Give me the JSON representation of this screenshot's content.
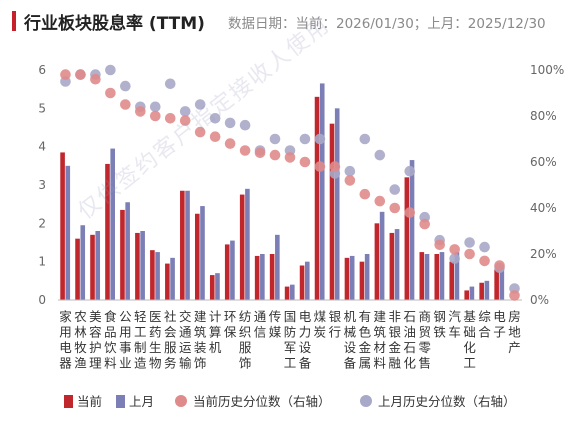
{
  "header": {
    "title": "行业板块股息率 (TTM)",
    "dates": "数据日期：当前：2026/01/30；上月：2025/12/30"
  },
  "watermark": "仅供签约客户指定接收人使用",
  "chart_data": {
    "type": "bar",
    "categories": [
      "家用电器",
      "农林牧渔",
      "美容护理",
      "食品饮料",
      "公用事业",
      "轻工制造",
      "医药生物",
      "社会服务",
      "交通运输",
      "建筑装饰",
      "计算机",
      "环保",
      "纺织服饰",
      "通信",
      "传媒",
      "国防军工",
      "电力设备",
      "煤炭",
      "银行",
      "机械设备",
      "有色金属",
      "建筑材料",
      "非银金融",
      "石油石化",
      "商贸零售",
      "钢铁",
      "汽车",
      "基础化工",
      "综合",
      "电子",
      "房地产"
    ],
    "series": [
      {
        "name": "当前",
        "axis": "left",
        "color": "#c0272d",
        "values": [
          3.85,
          1.6,
          1.7,
          3.55,
          2.35,
          1.75,
          1.3,
          0.95,
          2.85,
          2.25,
          0.65,
          1.45,
          2.75,
          1.15,
          1.2,
          0.35,
          0.9,
          5.3,
          4.6,
          1.1,
          1.0,
          2.0,
          1.75,
          3.2,
          1.25,
          1.2,
          1.0,
          0.25,
          0.45,
          0.8,
          0.0
        ]
      },
      {
        "name": "上月",
        "axis": "left",
        "color": "#7b7fb5",
        "values": [
          3.5,
          1.95,
          1.8,
          3.95,
          2.55,
          1.8,
          1.25,
          1.1,
          2.85,
          2.45,
          0.7,
          1.55,
          2.9,
          1.2,
          1.7,
          0.4,
          1.0,
          5.65,
          5.0,
          1.15,
          1.2,
          2.3,
          1.85,
          3.65,
          1.2,
          1.25,
          1.25,
          0.35,
          0.5,
          0.9,
          0.0
        ]
      },
      {
        "name": "当前历史分位数（右轴）",
        "axis": "right",
        "color": "#e08b8b",
        "values": [
          98,
          98,
          96,
          90,
          85,
          82,
          80,
          79,
          78,
          73,
          71,
          68,
          65,
          64,
          63,
          62,
          60,
          58,
          58,
          52,
          46,
          43,
          40,
          38,
          33,
          24,
          22,
          20,
          17,
          15,
          2
        ]
      },
      {
        "name": "上月历史分位数（右轴）",
        "axis": "right",
        "color": "#a8a8c8",
        "values": [
          95,
          98,
          98,
          100,
          93,
          84,
          84,
          94,
          82,
          85,
          79,
          77,
          76,
          65,
          70,
          65,
          70,
          70,
          55,
          56,
          70,
          63,
          48,
          56,
          36,
          26,
          18,
          25,
          23,
          14,
          5
        ]
      }
    ],
    "y_left": {
      "min": 0,
      "max": 6,
      "ticks": [
        "0",
        "1",
        "2",
        "3",
        "4",
        "5",
        "6"
      ]
    },
    "y_right": {
      "min": 0,
      "max": 100,
      "ticks": [
        "0%",
        "20%",
        "40%",
        "60%",
        "80%",
        "100%"
      ]
    },
    "grid": false,
    "legend_position": "bottom"
  }
}
